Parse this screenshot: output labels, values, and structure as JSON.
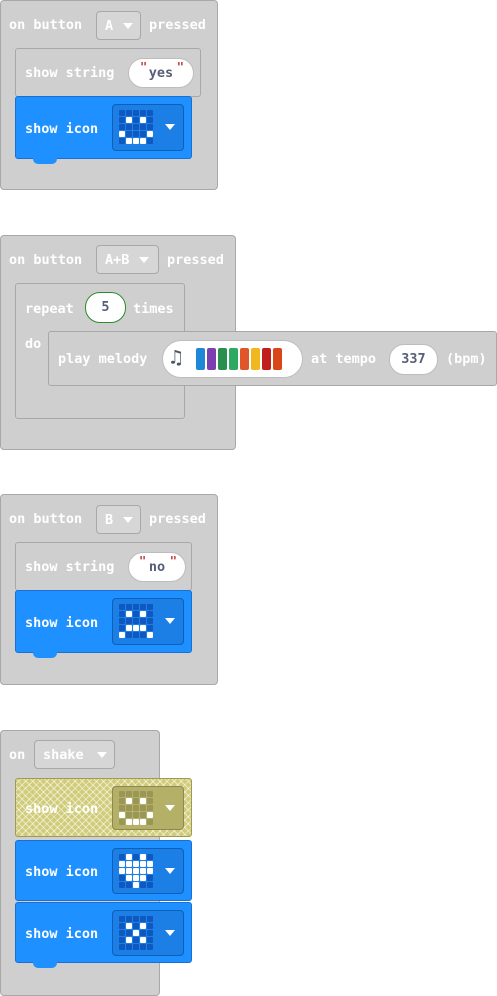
{
  "events": [
    {
      "label_on": "on button",
      "trigger": "A",
      "label_after": "pressed",
      "body": {
        "show_string_label": "show string",
        "string_value": "yes",
        "show_icon_label": "show icon",
        "icon": [
          [
            0,
            0,
            0,
            0,
            0
          ],
          [
            0,
            1,
            0,
            1,
            0
          ],
          [
            0,
            0,
            0,
            0,
            0
          ],
          [
            1,
            0,
            0,
            0,
            1
          ],
          [
            0,
            1,
            1,
            1,
            0
          ]
        ]
      }
    },
    {
      "label_on": "on button",
      "trigger": "A+B",
      "label_after": "pressed",
      "body": {
        "repeat_label": "repeat",
        "repeat_count": "5",
        "times_label": "times",
        "do_label": "do",
        "play_melody_label": "play melody",
        "melody_note_colors": [
          "#1e88d6",
          "#7b3fb0",
          "#2a8f4d",
          "#2fa862",
          "#e0562a",
          "#f0b81e",
          "#c21e1e",
          "#d8471a"
        ],
        "at_tempo_label": "at tempo",
        "tempo_value": "337",
        "bpm_label": "(bpm)"
      }
    },
    {
      "label_on": "on button",
      "trigger": "B",
      "label_after": "pressed",
      "body": {
        "show_string_label": "show string",
        "string_value": "no",
        "show_icon_label": "show icon",
        "icon": [
          [
            0,
            0,
            0,
            0,
            0
          ],
          [
            0,
            1,
            0,
            1,
            0
          ],
          [
            0,
            0,
            0,
            0,
            0
          ],
          [
            0,
            1,
            1,
            1,
            0
          ],
          [
            1,
            0,
            0,
            0,
            1
          ]
        ]
      }
    },
    {
      "label_on": "on",
      "trigger": "shake",
      "body": {
        "show_icon_label": "show icon",
        "icons": [
          {
            "state": "disabled",
            "pattern": [
              [
                0,
                0,
                0,
                0,
                0
              ],
              [
                0,
                1,
                0,
                1,
                0
              ],
              [
                0,
                0,
                0,
                0,
                0
              ],
              [
                1,
                0,
                0,
                0,
                1
              ],
              [
                0,
                1,
                1,
                1,
                0
              ]
            ]
          },
          {
            "state": "normal",
            "pattern": [
              [
                0,
                1,
                0,
                1,
                0
              ],
              [
                1,
                1,
                1,
                1,
                1
              ],
              [
                1,
                1,
                1,
                1,
                1
              ],
              [
                0,
                1,
                1,
                1,
                0
              ],
              [
                0,
                0,
                1,
                0,
                0
              ]
            ]
          },
          {
            "state": "normal",
            "pattern": [
              [
                0,
                0,
                0,
                0,
                0
              ],
              [
                0,
                1,
                0,
                1,
                0
              ],
              [
                0,
                0,
                1,
                0,
                0
              ],
              [
                0,
                1,
                0,
                1,
                0
              ],
              [
                0,
                0,
                0,
                0,
                0
              ]
            ]
          }
        ]
      }
    }
  ],
  "colors": {
    "event_block": "#cfcfcf",
    "basic_block": "#1e90ff",
    "disabled_block": "#d0cc7a",
    "repeat_count_border": "#2a8c2a"
  }
}
